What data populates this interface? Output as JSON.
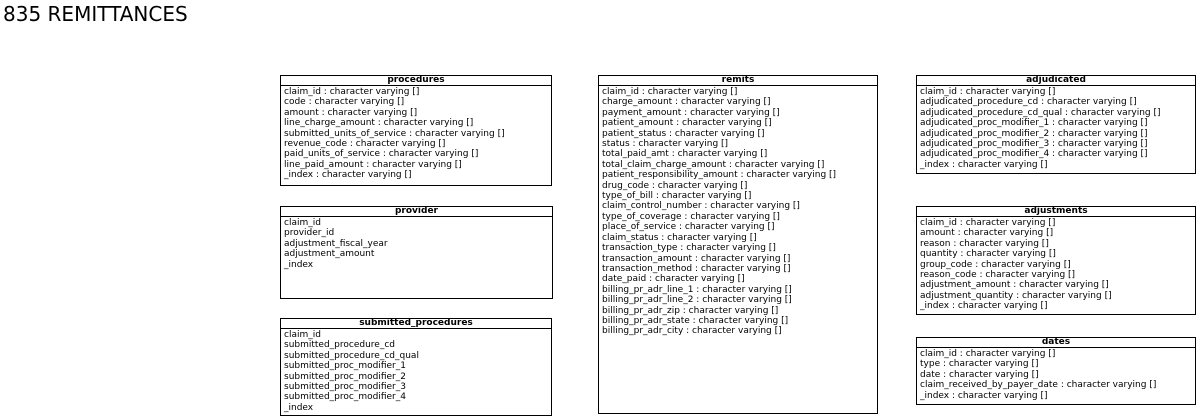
{
  "title": "835 REMITTANCES",
  "tables": [
    {
      "name": "procedures",
      "fields": [
        "claim_id : character varying []",
        "code : character varying []",
        "amount : character varying []",
        "line_charge_amount : character varying []",
        "submitted_units_of_service : character varying []",
        "revenue_code : character varying []",
        "paid_units_of_service : character varying []",
        "line_paid_amount : character varying []",
        "_index : character varying []"
      ]
    },
    {
      "name": "provider",
      "fields": [
        "claim_id",
        "provider_id",
        "adjustment_fiscal_year",
        "adjustment_amount",
        "_index"
      ]
    },
    {
      "name": "submitted_procedures",
      "fields": [
        "claim_id",
        "submitted_procedure_cd",
        "submitted_procedure_cd_qual",
        "submitted_proc_modifier_1",
        "submitted_proc_modifier_2",
        "submitted_proc_modifier_3",
        "submitted_proc_modifier_4",
        "_index"
      ]
    },
    {
      "name": "remits",
      "fields": [
        "claim_id : character varying []",
        "charge_amount : character varying []",
        "payment_amount : character varying []",
        "patient_amount : character varying []",
        "patient_status : character varying []",
        "status : character varying []",
        "total_paid_amt : character varying []",
        "total_claim_charge_amount : character varying []",
        "patient_responsibility_amount : character varying []",
        "drug_code : character varying []",
        "type_of_bill : character varying []",
        "claim_control_number : character varying []",
        "type_of_coverage : character varying []",
        "place_of_service : character varying []",
        "claim_status : character varying []",
        "transaction_type : character varying []",
        "transaction_amount : character varying []",
        "transaction_method : character varying []",
        "date_paid : character varying []",
        "billing_pr_adr_line_1 : character varying []",
        "billing_pr_adr_line_2 : character varying []",
        "billing_pr_adr_zip : character varying []",
        "billing_pr_adr_state : character varying []",
        "billing_pr_adr_city : character varying []"
      ]
    },
    {
      "name": "adjudicated",
      "fields": [
        "claim_id : character varying []",
        "adjudicated_procedure_cd : character varying []",
        "adjudicated_procedure_cd_qual : character varying []",
        "adjudicated_proc_modifier_1 : character varying []",
        "adjudicated_proc_modifier_2 : character varying []",
        "adjudicated_proc_modifier_3 : character varying []",
        "adjudicated_proc_modifier_4 : character varying []",
        "_index : character varying []"
      ]
    },
    {
      "name": "adjustments",
      "fields": [
        "claim_id : character varying []",
        "amount : character varying []",
        "reason : character varying []",
        "quantity : character varying []",
        "group_code : character varying []",
        "reason_code : character varying []",
        "adjustment_amount : character varying []",
        "adjustment_quantity : character varying []",
        "_index : character varying []"
      ]
    },
    {
      "name": "dates",
      "fields": [
        "claim_id : character varying []",
        "type : character varying []",
        "date : character varying []",
        "claim_received_by_payer_date : character varying []",
        "_index : character varying []"
      ]
    }
  ]
}
